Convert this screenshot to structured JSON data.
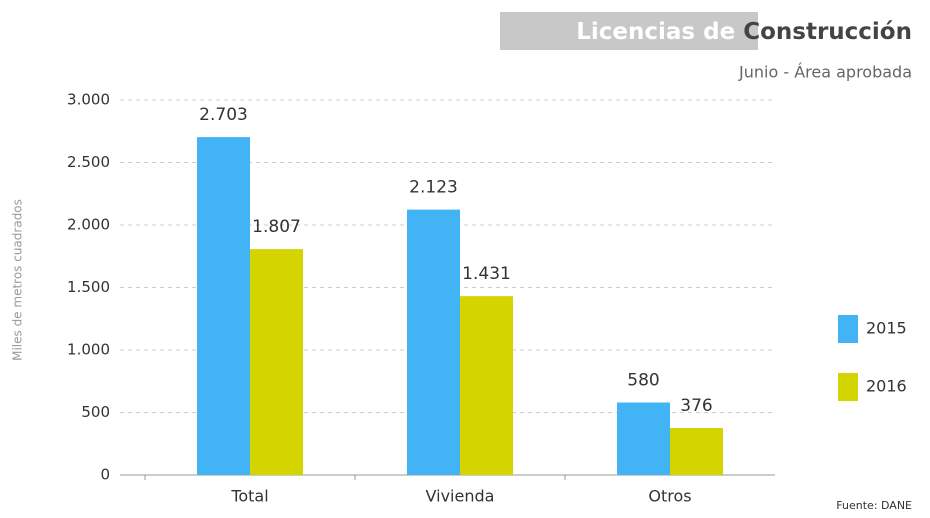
{
  "chart_data": {
    "type": "bar",
    "title_highlight": "Licencias de",
    "title": "Construcción",
    "subtitle": "Junio - Área aprobada",
    "y_label": "Miles de metros cuadrados",
    "source": "Fuente: DANE",
    "categories": [
      "Total",
      "Vivienda",
      "Otros"
    ],
    "series": [
      {
        "name": "2015",
        "color": "#42b4f5",
        "values": [
          2703,
          2123,
          580
        ],
        "value_labels": [
          "2.703",
          "2.123",
          "580"
        ]
      },
      {
        "name": "2016",
        "color": "#d4d400",
        "values": [
          1807,
          1431,
          376
        ],
        "value_labels": [
          "1.807",
          "1.431",
          "376"
        ]
      }
    ],
    "ylim": [
      0,
      3000
    ],
    "yticks": [
      0,
      500,
      {
        "value": 1000,
        "label": "1.000"
      },
      {
        "value": 1500,
        "label": "1.500"
      },
      {
        "value": 2000,
        "label": "2.000"
      },
      {
        "value": 2500,
        "label": "2.500"
      },
      {
        "value": 3000,
        "label": "3.000"
      }
    ],
    "grid": true,
    "legend": "right"
  }
}
